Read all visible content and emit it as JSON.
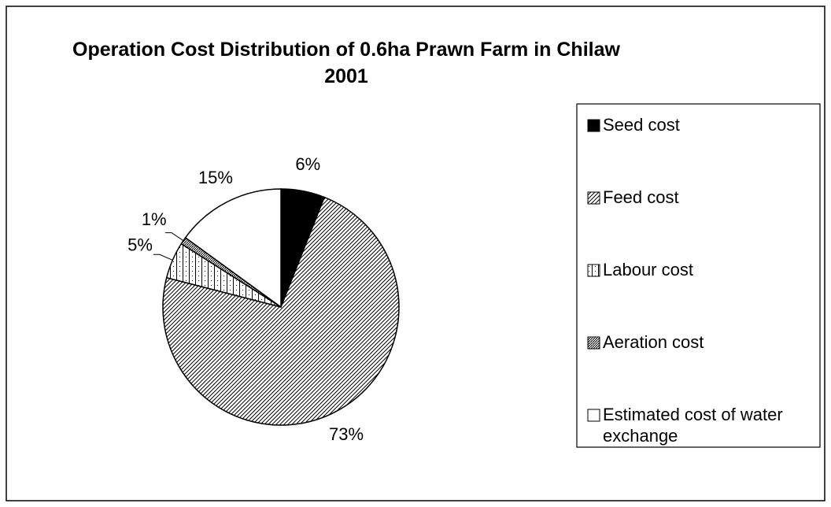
{
  "chart_data": {
    "type": "pie",
    "title": "Operation Cost Distribution of 0.6ha Prawn Farm in Chilaw 2001",
    "categories": [
      "Seed cost",
      "Feed cost",
      "Labour cost",
      "Aeration cost",
      "Estimated cost of water exchange"
    ],
    "values": [
      6,
      73,
      5,
      1,
      15
    ],
    "value_labels": [
      "6%",
      "73%",
      "5%",
      "1%",
      "15%"
    ],
    "legend": "right"
  }
}
